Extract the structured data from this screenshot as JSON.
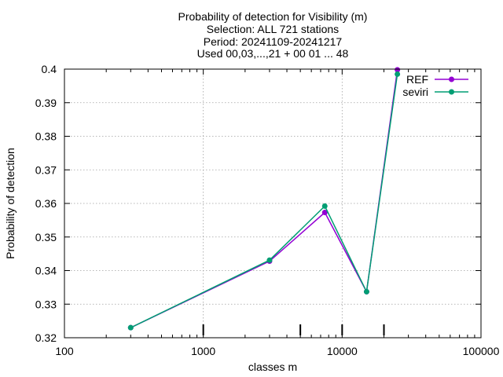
{
  "chart_data": {
    "type": "line",
    "title_lines": [
      "Probability of detection  for Visibility (m)",
      "Selection: ALL    721 stations",
      "Period: 20241109-20241217",
      "Used 00,03,...,21 + 00 01 ... 48"
    ],
    "xlabel": "classes m",
    "ylabel": "Probability of detection",
    "x_scale": "log",
    "xlim": [
      100,
      100000
    ],
    "ylim": [
      0.32,
      0.4
    ],
    "x_ticks": [
      100,
      1000,
      10000,
      100000
    ],
    "x_tick_labels": [
      "100",
      "1000",
      "10000",
      "100000"
    ],
    "y_ticks": [
      0.32,
      0.33,
      0.34,
      0.35,
      0.36,
      0.37,
      0.38,
      0.39,
      0.4
    ],
    "y_tick_labels": [
      "0.32",
      "0.33",
      "0.34",
      "0.35",
      "0.36",
      "0.37",
      "0.38",
      "0.39",
      "0.4"
    ],
    "grid": true,
    "legend_position": "top-right",
    "threshold_markers_x": [
      1000,
      5000,
      10000,
      20000
    ],
    "series": [
      {
        "name": "REF",
        "color": "#9400d3",
        "marker": "circle",
        "x": [
          300,
          3000,
          7500,
          15000,
          25000
        ],
        "y": [
          0.323,
          0.3428,
          0.3573,
          0.3337,
          0.3998
        ]
      },
      {
        "name": "seviri",
        "color": "#009e73",
        "marker": "circle",
        "x": [
          300,
          3000,
          7500,
          15000,
          25000
        ],
        "y": [
          0.323,
          0.3431,
          0.3592,
          0.3337,
          0.3985
        ]
      }
    ]
  }
}
